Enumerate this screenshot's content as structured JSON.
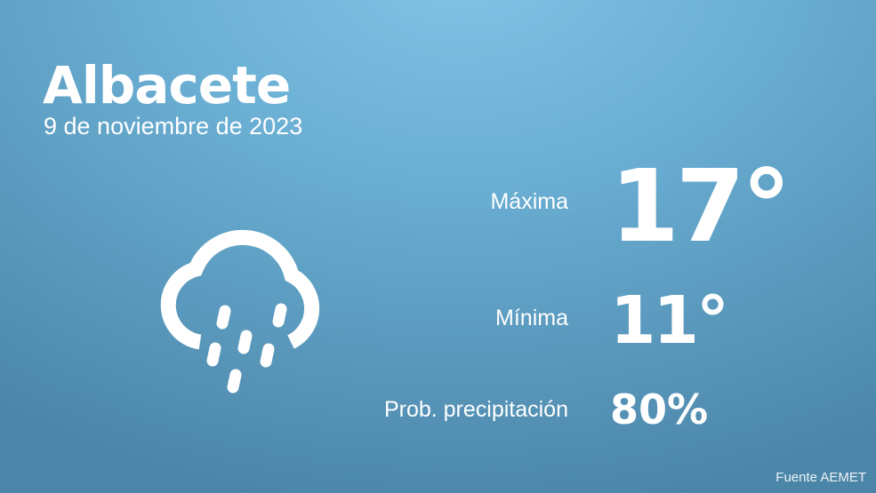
{
  "city": "Albacete",
  "date": "9 de noviembre de 2023",
  "weather_icon": "cloud-rain-icon",
  "max": {
    "label": "Máxima",
    "value": "17°"
  },
  "min": {
    "label": "Mínima",
    "value": "11°"
  },
  "precip": {
    "label": "Prob. precipitación",
    "value": "80%"
  },
  "source": "Fuente AEMET",
  "colors": {
    "bg_top": "#82c4e6",
    "bg_bottom": "#4b86a8",
    "text": "#ffffff"
  }
}
